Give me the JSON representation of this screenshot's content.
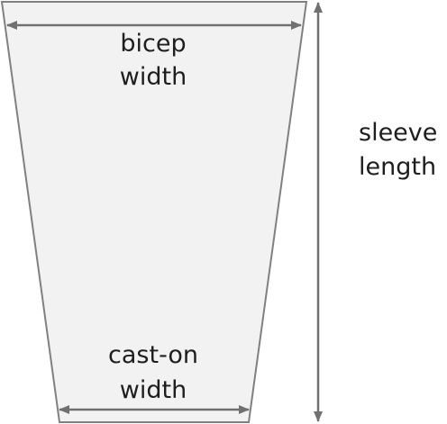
{
  "diagram": {
    "shape": "sleeve-trapezoid",
    "labels": {
      "bicep_line1": "bicep",
      "bicep_line2": "width",
      "caston_line1": "cast-on",
      "caston_line2": "width",
      "sleeve_line1": "sleeve",
      "sleeve_line2": "length"
    },
    "colors": {
      "fill": "#f2f2f2",
      "outline": "#808080",
      "arrow": "#707070",
      "text": "#1e1e1e"
    }
  }
}
